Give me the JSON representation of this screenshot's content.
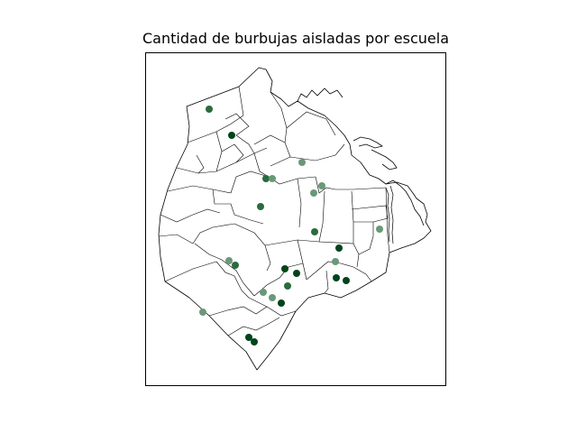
{
  "title": "Cantidad de burbujas aisladas por escuela",
  "colors": {
    "background": "#ffffff",
    "boundary": "#000000",
    "point_dark": "#00441b",
    "point_mid": "#2a6b3f",
    "point_light": "#6a9878"
  },
  "map_data": {
    "type": "scatter-on-map",
    "points": [
      {
        "tone": "mid"
      },
      {
        "tone": "dark"
      },
      {
        "tone": "light"
      },
      {
        "tone": "mid"
      },
      {
        "tone": "light"
      },
      {
        "tone": "light"
      },
      {
        "tone": "light"
      },
      {
        "tone": "mid"
      },
      {
        "tone": "mid"
      },
      {
        "tone": "dark"
      },
      {
        "tone": "light"
      },
      {
        "tone": "light"
      },
      {
        "tone": "light"
      },
      {
        "tone": "mid"
      },
      {
        "tone": "dark"
      },
      {
        "tone": "dark"
      },
      {
        "tone": "dark"
      },
      {
        "tone": "dark"
      },
      {
        "tone": "mid"
      },
      {
        "tone": "light"
      },
      {
        "tone": "light"
      },
      {
        "tone": "dark"
      },
      {
        "tone": "light"
      },
      {
        "tone": "dark"
      },
      {
        "tone": "dark"
      }
    ]
  }
}
